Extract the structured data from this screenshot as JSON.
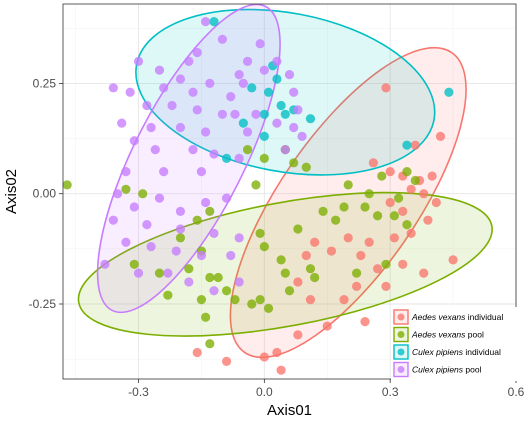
{
  "chart_data": {
    "type": "scatter",
    "xlabel": "Axis01",
    "ylabel": "Axis02",
    "xlim": [
      -0.48,
      0.6
    ],
    "ylim": [
      -0.42,
      0.43
    ],
    "x_ticks": [
      -0.3,
      0.0,
      0.3,
      0.6
    ],
    "x_tick_labels": [
      "-0.3",
      "0.0",
      "0.3",
      "0.6"
    ],
    "y_ticks": [
      -0.25,
      0.0,
      0.25
    ],
    "y_tick_labels": [
      "-0.25",
      "0.00",
      "0.25"
    ],
    "grid": true,
    "legend_position": "bottom-right",
    "series": [
      {
        "species": "Aedes vexans",
        "group": "individual",
        "color": "#F8766D",
        "points": [
          [
            0.29,
            0.24
          ],
          [
            0.42,
            0.13
          ],
          [
            0.36,
            0.11
          ],
          [
            0.26,
            0.07
          ],
          [
            0.3,
            0.05
          ],
          [
            0.33,
            0.04
          ],
          [
            0.37,
            0.03
          ],
          [
            0.4,
            0.04
          ],
          [
            0.35,
            0.01
          ],
          [
            0.38,
            0.0
          ],
          [
            0.3,
            -0.02
          ],
          [
            0.33,
            -0.04
          ],
          [
            0.41,
            -0.02
          ],
          [
            0.39,
            -0.06
          ],
          [
            0.35,
            -0.09
          ],
          [
            0.31,
            -0.1
          ],
          [
            0.25,
            -0.11
          ],
          [
            0.2,
            -0.1
          ],
          [
            0.23,
            -0.14
          ],
          [
            0.16,
            -0.13
          ],
          [
            0.12,
            -0.11
          ],
          [
            0.1,
            -0.14
          ],
          [
            0.27,
            -0.17
          ],
          [
            0.33,
            -0.16
          ],
          [
            0.29,
            -0.21
          ],
          [
            0.22,
            -0.21
          ],
          [
            0.19,
            -0.24
          ],
          [
            0.11,
            -0.24
          ],
          [
            0.08,
            -0.2
          ],
          [
            0.24,
            -0.29
          ],
          [
            0.15,
            -0.3
          ],
          [
            0.08,
            -0.32
          ],
          [
            0.03,
            -0.36
          ],
          [
            0.0,
            -0.37
          ],
          [
            -0.09,
            -0.38
          ],
          [
            -0.16,
            -0.36
          ],
          [
            0.04,
            -0.4
          ],
          [
            0.38,
            -0.18
          ],
          [
            0.45,
            -0.15
          ]
        ]
      },
      {
        "species": "Aedes vexans",
        "group": "pool",
        "color": "#7CAE00",
        "points": [
          [
            -0.47,
            0.02
          ],
          [
            -0.33,
            0.01
          ],
          [
            -0.29,
            0.0
          ],
          [
            -0.13,
            -0.04
          ],
          [
            -0.16,
            -0.06
          ],
          [
            -0.2,
            -0.1
          ],
          [
            -0.15,
            -0.13
          ],
          [
            -0.31,
            -0.16
          ],
          [
            -0.25,
            -0.18
          ],
          [
            -0.18,
            -0.17
          ],
          [
            -0.23,
            -0.23
          ],
          [
            -0.13,
            -0.19
          ],
          [
            -0.11,
            -0.19
          ],
          [
            -0.09,
            -0.22
          ],
          [
            -0.07,
            -0.24
          ],
          [
            -0.15,
            -0.24
          ],
          [
            -0.03,
            -0.25
          ],
          [
            0.01,
            -0.26
          ],
          [
            0.06,
            -0.22
          ],
          [
            0.05,
            -0.18
          ],
          [
            0.11,
            -0.17
          ],
          [
            0.12,
            -0.19
          ],
          [
            0.04,
            -0.15
          ],
          [
            0.0,
            -0.12
          ],
          [
            -0.01,
            -0.09
          ],
          [
            0.08,
            -0.08
          ],
          [
            0.14,
            -0.04
          ],
          [
            0.17,
            -0.06
          ],
          [
            0.19,
            -0.03
          ],
          [
            0.24,
            -0.03
          ],
          [
            0.27,
            -0.05
          ],
          [
            0.31,
            -0.05
          ],
          [
            0.34,
            -0.07
          ],
          [
            0.32,
            -0.01
          ],
          [
            0.36,
            0.03
          ],
          [
            0.34,
            0.05
          ],
          [
            0.28,
            0.04
          ],
          [
            0.25,
            0.0
          ],
          [
            0.2,
            0.02
          ],
          [
            0.1,
            0.06
          ],
          [
            0.07,
            0.07
          ],
          [
            0.05,
            0.1
          ],
          [
            0.0,
            0.08
          ],
          [
            -0.14,
            -0.28
          ],
          [
            -0.13,
            -0.34
          ],
          [
            -0.01,
            -0.24
          ],
          [
            0.29,
            -0.16
          ],
          [
            -0.02,
            0.02
          ],
          [
            -0.04,
            0.1
          ],
          [
            0.22,
            -0.18
          ]
        ]
      },
      {
        "species": "Culex pipiens",
        "group": "individual",
        "color": "#00BFC4",
        "points": [
          [
            -0.12,
            0.39
          ],
          [
            0.02,
            0.29
          ],
          [
            0.03,
            0.26
          ],
          [
            -0.03,
            0.24
          ],
          [
            0.01,
            0.23
          ],
          [
            0.04,
            0.2
          ],
          [
            0.07,
            0.19
          ],
          [
            0.11,
            0.17
          ],
          [
            0.05,
            0.18
          ],
          [
            0.0,
            0.13
          ],
          [
            -0.09,
            0.08
          ],
          [
            0.34,
            0.11
          ],
          [
            0.44,
            0.23
          ],
          [
            -0.05,
            0.16
          ],
          [
            0.0,
            0.18
          ]
        ]
      },
      {
        "species": "Culex pipiens",
        "group": "pool",
        "color": "#C77CFF",
        "points": [
          [
            -0.14,
            0.39
          ],
          [
            -0.1,
            0.35
          ],
          [
            -0.01,
            0.34
          ],
          [
            -0.3,
            0.3
          ],
          [
            -0.25,
            0.28
          ],
          [
            -0.18,
            0.3
          ],
          [
            -0.04,
            0.3
          ],
          [
            0.03,
            0.3
          ],
          [
            -0.2,
            0.26
          ],
          [
            -0.13,
            0.25
          ],
          [
            -0.06,
            0.27
          ],
          [
            0.0,
            0.28
          ],
          [
            0.06,
            0.27
          ],
          [
            -0.36,
            0.24
          ],
          [
            -0.32,
            0.23
          ],
          [
            -0.24,
            0.24
          ],
          [
            -0.17,
            0.23
          ],
          [
            -0.08,
            0.22
          ],
          [
            0.07,
            0.23
          ],
          [
            -0.28,
            0.2
          ],
          [
            -0.22,
            0.2
          ],
          [
            -0.16,
            0.19
          ],
          [
            -0.1,
            0.18
          ],
          [
            -0.07,
            0.18
          ],
          [
            -0.02,
            0.18
          ],
          [
            0.03,
            0.16
          ],
          [
            -0.34,
            0.16
          ],
          [
            -0.27,
            0.15
          ],
          [
            -0.2,
            0.15
          ],
          [
            -0.14,
            0.14
          ],
          [
            -0.04,
            0.14
          ],
          [
            0.07,
            0.15
          ],
          [
            0.09,
            0.13
          ],
          [
            -0.31,
            0.12
          ],
          [
            -0.26,
            0.1
          ],
          [
            -0.17,
            0.1
          ],
          [
            -0.12,
            0.09
          ],
          [
            -0.06,
            0.08
          ],
          [
            0.05,
            0.1
          ],
          [
            -0.33,
            0.05
          ],
          [
            -0.24,
            0.05
          ],
          [
            -0.15,
            0.05
          ],
          [
            -0.35,
            0.0
          ],
          [
            -0.31,
            -0.03
          ],
          [
            -0.25,
            -0.01
          ],
          [
            -0.2,
            -0.04
          ],
          [
            -0.14,
            -0.02
          ],
          [
            -0.09,
            -0.01
          ],
          [
            -0.36,
            -0.06
          ],
          [
            -0.28,
            -0.07
          ],
          [
            -0.2,
            -0.08
          ],
          [
            -0.12,
            -0.09
          ],
          [
            -0.06,
            -0.1
          ],
          [
            -0.33,
            -0.11
          ],
          [
            -0.27,
            -0.12
          ],
          [
            -0.21,
            -0.13
          ],
          [
            -0.15,
            -0.14
          ],
          [
            -0.08,
            -0.14
          ],
          [
            -0.38,
            -0.16
          ],
          [
            -0.3,
            -0.18
          ],
          [
            -0.23,
            -0.18
          ],
          [
            -0.18,
            -0.2
          ],
          [
            -0.12,
            -0.22
          ],
          [
            -0.06,
            -0.2
          ],
          [
            -0.16,
            0.32
          ],
          [
            -0.05,
            0.25
          ],
          [
            0.08,
            0.19
          ]
        ]
      }
    ],
    "ellipses": [
      {
        "series": 0,
        "cx": 0.2,
        "cy": -0.02,
        "rx": 0.42,
        "ry": 0.16,
        "angle_deg": 54
      },
      {
        "series": 1,
        "cx": 0.05,
        "cy": -0.16,
        "rx": 0.5,
        "ry": 0.14,
        "angle_deg": 10
      },
      {
        "series": 2,
        "cx": 0.05,
        "cy": 0.23,
        "rx": 0.36,
        "ry": 0.18,
        "angle_deg": -10
      },
      {
        "series": 3,
        "cx": -0.18,
        "cy": 0.08,
        "rx": 0.39,
        "ry": 0.13,
        "angle_deg": 62
      }
    ],
    "legend": [
      {
        "species": "Aedes vexans",
        "suffix": "individual"
      },
      {
        "species": "Aedes vexans",
        "suffix": "pool"
      },
      {
        "species": "Culex pipiens",
        "suffix": "individual"
      },
      {
        "species": "Culex pipiens",
        "suffix": "pool"
      }
    ]
  }
}
